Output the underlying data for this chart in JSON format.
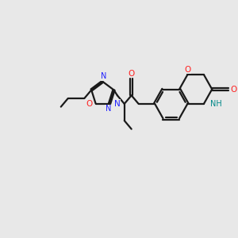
{
  "bg_color": "#e8e8e8",
  "bond_color": "#1a1a1a",
  "N_color": "#2020ff",
  "O_color": "#ff2020",
  "NH_color": "#008888",
  "line_width": 1.6,
  "figsize": [
    3.0,
    3.0
  ],
  "dpi": 100,
  "xlim": [
    0,
    10
  ],
  "ylim": [
    0,
    10
  ]
}
